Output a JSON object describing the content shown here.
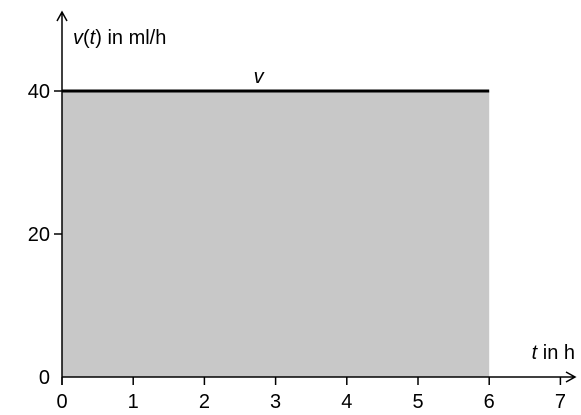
{
  "chart_data": {
    "type": "area",
    "ylabel": {
      "var": "v",
      "arg": "t",
      "unit": " in ml/h"
    },
    "xlabel": {
      "var": "t",
      "unit": " in h"
    },
    "x_ticks": [
      "0",
      "1",
      "2",
      "3",
      "4",
      "5",
      "6",
      "7"
    ],
    "y_ticks": [
      "0",
      "20",
      "40"
    ],
    "series": [
      {
        "name": "v",
        "x": [
          0,
          6
        ],
        "y": [
          40,
          40
        ]
      }
    ],
    "fill": {
      "x_from": 0,
      "x_to": 6,
      "y_from": 0,
      "y_to": 40,
      "color": "#c8c8c8"
    },
    "xlim": [
      0,
      7.25
    ],
    "ylim": [
      0,
      52
    ],
    "grid": false,
    "line_color": "#000000"
  }
}
